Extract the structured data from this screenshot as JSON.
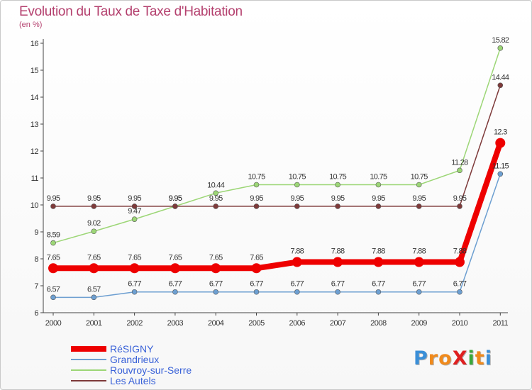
{
  "title": "Evolution du Taux de Taxe d'Habitation",
  "unit": "(en %)",
  "logo": {
    "text": "ProXiti",
    "letters": [
      {
        "ch": "P",
        "color": "#3a8fd8"
      },
      {
        "ch": "r",
        "color": "#f08a1c"
      },
      {
        "ch": "o",
        "color": "#f08a1c"
      },
      {
        "ch": "X",
        "color": "#e02020"
      },
      {
        "ch": "i",
        "color": "#3aa83a"
      },
      {
        "ch": "t",
        "color": "#f08a1c"
      },
      {
        "ch": "i",
        "color": "#3a8fd8"
      }
    ]
  },
  "chart_data": {
    "type": "line",
    "title": "Evolution du Taux de Taxe d'Habitation",
    "ylabel": "(en %)",
    "xlabel": "",
    "x": [
      "2000",
      "2001",
      "2002",
      "2003",
      "2004",
      "2005",
      "2006",
      "2007",
      "2008",
      "2009",
      "2010",
      "2011"
    ],
    "ylim": [
      6,
      16
    ],
    "yticks": [
      6,
      7,
      8,
      9,
      10,
      11,
      12,
      13,
      14,
      15,
      16
    ],
    "grid": false,
    "legend_position": "bottom-left",
    "series": [
      {
        "name": "RéSIGNY",
        "color": "#ee0000",
        "width": 8,
        "marker": 7,
        "values": [
          7.65,
          7.65,
          7.65,
          7.65,
          7.65,
          7.65,
          7.88,
          7.88,
          7.88,
          7.88,
          7.88,
          12.3
        ],
        "labels": [
          "7.65",
          "7.65",
          "7.65",
          "7.65",
          "7.65",
          "7.65",
          "7.88",
          "7.88",
          "7.88",
          "7.88",
          "7.88",
          "12.3"
        ]
      },
      {
        "name": "Grandrieux",
        "color": "#6d9fd1",
        "width": 1.5,
        "marker": 3.5,
        "values": [
          6.57,
          6.57,
          6.77,
          6.77,
          6.77,
          6.77,
          6.77,
          6.77,
          6.77,
          6.77,
          6.77,
          11.15
        ],
        "labels": [
          "6.57",
          "6.57",
          "6.77",
          "6.77",
          "6.77",
          "6.77",
          "6.77",
          "6.77",
          "6.77",
          "6.77",
          "6.77",
          "11.15"
        ]
      },
      {
        "name": "Rouvroy-sur-Serre",
        "color": "#9cd676",
        "width": 1.5,
        "marker": 3.5,
        "values": [
          8.59,
          9.02,
          9.47,
          9.95,
          10.44,
          10.75,
          10.75,
          10.75,
          10.75,
          10.75,
          11.28,
          15.82
        ],
        "labels": [
          "8.59",
          "9.02",
          "9.47",
          "9.95",
          "10.44",
          "10.75",
          "10.75",
          "10.75",
          "10.75",
          "10.75",
          "11.28",
          "15.82"
        ]
      },
      {
        "name": "Les Autels",
        "color": "#7e3a3a",
        "width": 1.5,
        "marker": 3.5,
        "values": [
          9.95,
          9.95,
          9.95,
          9.95,
          9.95,
          9.95,
          9.95,
          9.95,
          9.95,
          9.95,
          9.95,
          14.44
        ],
        "labels": [
          "9.95",
          "9.95",
          "9.95",
          "9.95",
          "9.95",
          "9.95",
          "9.95",
          "9.95",
          "9.95",
          "9.95",
          "9.95",
          "14.44"
        ]
      }
    ]
  }
}
